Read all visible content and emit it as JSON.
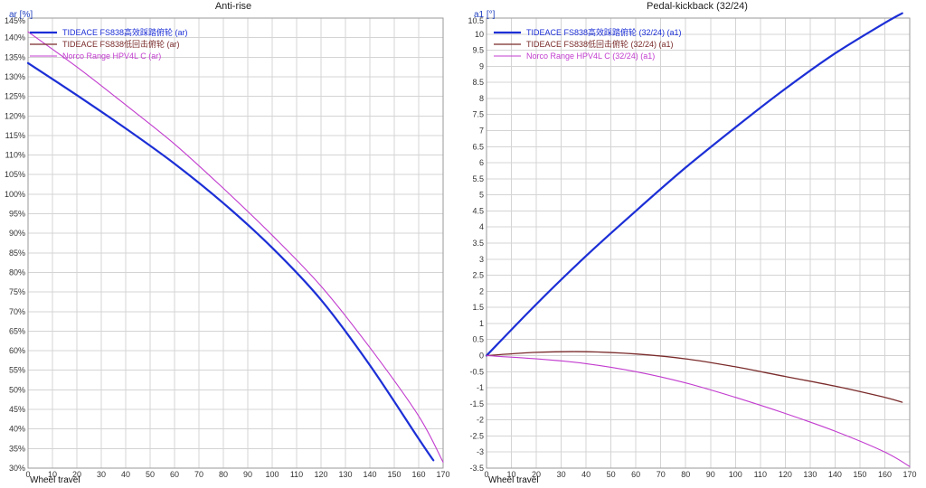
{
  "chart_data": [
    {
      "type": "line",
      "title": "Anti-rise",
      "ylabel": "ar [%]",
      "xlabel": "Wheel travel",
      "xlim": [
        0,
        170
      ],
      "ylim": [
        30,
        145
      ],
      "x_ticks": [
        0,
        10,
        20,
        30,
        40,
        50,
        60,
        70,
        80,
        90,
        100,
        110,
        120,
        130,
        140,
        150,
        160,
        170
      ],
      "y_ticks": [
        30,
        35,
        40,
        45,
        50,
        55,
        60,
        65,
        70,
        75,
        80,
        85,
        90,
        95,
        100,
        105,
        110,
        115,
        120,
        125,
        130,
        135,
        140,
        145
      ],
      "y_tick_suffix": "%",
      "grid": true,
      "legend_position": "top-left",
      "series": [
        {
          "name": "TIDEACE FS838高效踩踏俯轮 (ar)",
          "color": "#1c2fd6",
          "width": 2.2,
          "x": [
            0,
            20,
            40,
            60,
            80,
            100,
            120,
            140,
            160,
            166
          ],
          "y": [
            133.5,
            125.3,
            116.8,
            107.8,
            97.7,
            86.3,
            73.0,
            56.3,
            37.5,
            32.0
          ]
        },
        {
          "name": "TIDEACE FS838低回击俯轮 (ar)",
          "color": "#7a2a2a",
          "width": 1.3,
          "x": [],
          "y": []
        },
        {
          "name": "Norco Range HPV4L C (ar)",
          "color": "#c23ccf",
          "width": 1.1,
          "x": [
            0,
            20,
            40,
            60,
            80,
            100,
            120,
            140,
            160,
            170
          ],
          "y": [
            141.5,
            132.5,
            122.8,
            112.8,
            101.5,
            89.5,
            76.5,
            60.8,
            43.3,
            31.5
          ]
        }
      ]
    },
    {
      "type": "line",
      "title": "Pedal-kickback (32/24)",
      "ylabel": "a1 [°]",
      "xlabel": "Wheel travel",
      "xlim": [
        0,
        170
      ],
      "ylim": [
        -3.5,
        10.5
      ],
      "x_ticks": [
        0,
        10,
        20,
        30,
        40,
        50,
        60,
        70,
        80,
        90,
        100,
        110,
        120,
        130,
        140,
        150,
        160,
        170
      ],
      "y_ticks": [
        -3.5,
        -3,
        -2.5,
        -2,
        -1.5,
        -1,
        -0.5,
        0,
        0.5,
        1,
        1.5,
        2,
        2.5,
        3,
        3.5,
        4,
        4.5,
        5,
        5.5,
        6,
        6.5,
        7,
        7.5,
        8,
        8.5,
        9,
        9.5,
        10,
        10.5
      ],
      "y_tick_suffix": "",
      "grid": true,
      "legend_position": "top-left",
      "series": [
        {
          "name": "TIDEACE FS838高效踩踏俯轮 (32/24) (a1)",
          "color": "#1c2fd6",
          "width": 2.2,
          "x": [
            0,
            20,
            40,
            60,
            80,
            100,
            120,
            140,
            160,
            167
          ],
          "y": [
            0,
            1.6,
            3.1,
            4.5,
            5.85,
            7.1,
            8.3,
            9.4,
            10.35,
            10.65
          ]
        },
        {
          "name": "TIDEACE FS838低回击俯轮 (32/24) (a1)",
          "color": "#7a2a2a",
          "width": 1.3,
          "x": [
            0,
            20,
            40,
            60,
            80,
            100,
            120,
            140,
            160,
            167
          ],
          "y": [
            0,
            0.1,
            0.12,
            0.05,
            -0.1,
            -0.35,
            -0.65,
            -0.95,
            -1.3,
            -1.45
          ]
        },
        {
          "name": "Norco Range HPV4L C (32/24) (a1)",
          "color": "#c23ccf",
          "width": 1.1,
          "x": [
            0,
            20,
            40,
            60,
            80,
            100,
            120,
            140,
            160,
            170
          ],
          "y": [
            0,
            -0.1,
            -0.25,
            -0.5,
            -0.85,
            -1.3,
            -1.8,
            -2.35,
            -3.0,
            -3.45
          ]
        }
      ]
    }
  ]
}
